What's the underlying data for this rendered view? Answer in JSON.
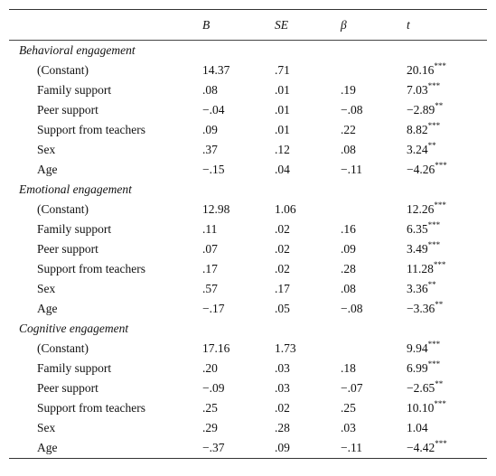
{
  "header": {
    "B": "B",
    "SE": "SE",
    "beta": "β",
    "t": "t"
  },
  "sections": [
    {
      "title": "Behavioral engagement",
      "rows": [
        {
          "label": "(Constant)",
          "B": "14.37",
          "SE": ".71",
          "beta": "",
          "t": "20.16",
          "sig": "***"
        },
        {
          "label": "Family support",
          "B": ".08",
          "SE": ".01",
          "beta": ".19",
          "t": "7.03",
          "sig": "***"
        },
        {
          "label": "Peer support",
          "B": "−.04",
          "SE": ".01",
          "beta": "−.08",
          "t": "−2.89",
          "sig": "**"
        },
        {
          "label": "Support from teachers",
          "B": ".09",
          "SE": ".01",
          "beta": ".22",
          "t": "8.82",
          "sig": "***"
        },
        {
          "label": "Sex",
          "B": ".37",
          "SE": ".12",
          "beta": ".08",
          "t": "3.24",
          "sig": "**"
        },
        {
          "label": "Age",
          "B": "−.15",
          "SE": ".04",
          "beta": "−.11",
          "t": "−4.26",
          "sig": "***"
        }
      ]
    },
    {
      "title": "Emotional engagement",
      "rows": [
        {
          "label": "(Constant)",
          "B": "12.98",
          "SE": "1.06",
          "beta": "",
          "t": "12.26",
          "sig": "***"
        },
        {
          "label": "Family support",
          "B": ".11",
          "SE": ".02",
          "beta": ".16",
          "t": "6.35",
          "sig": "***"
        },
        {
          "label": "Peer support",
          "B": ".07",
          "SE": ".02",
          "beta": ".09",
          "t": "3.49",
          "sig": "***"
        },
        {
          "label": "Support from teachers",
          "B": ".17",
          "SE": ".02",
          "beta": ".28",
          "t": "11.28",
          "sig": "***"
        },
        {
          "label": "Sex",
          "B": ".57",
          "SE": ".17",
          "beta": ".08",
          "t": "3.36",
          "sig": "**"
        },
        {
          "label": "Age",
          "B": "−.17",
          "SE": ".05",
          "beta": "−.08",
          "t": "−3.36",
          "sig": "**"
        }
      ]
    },
    {
      "title": "Cognitive engagement",
      "rows": [
        {
          "label": "(Constant)",
          "B": "17.16",
          "SE": "1.73",
          "beta": "",
          "t": "9.94",
          "sig": "***"
        },
        {
          "label": "Family support",
          "B": ".20",
          "SE": ".03",
          "beta": ".18",
          "t": "6.99",
          "sig": "***"
        },
        {
          "label": "Peer support",
          "B": "−.09",
          "SE": ".03",
          "beta": "−.07",
          "t": "−2.65",
          "sig": "**"
        },
        {
          "label": "Support from teachers",
          "B": ".25",
          "SE": ".02",
          "beta": ".25",
          "t": "10.10",
          "sig": "***"
        },
        {
          "label": "Sex",
          "B": ".29",
          "SE": ".28",
          "beta": ".03",
          "t": "1.04",
          "sig": ""
        },
        {
          "label": "Age",
          "B": "−.37",
          "SE": ".09",
          "beta": "−.11",
          "t": "−4.42",
          "sig": "***"
        }
      ]
    }
  ]
}
